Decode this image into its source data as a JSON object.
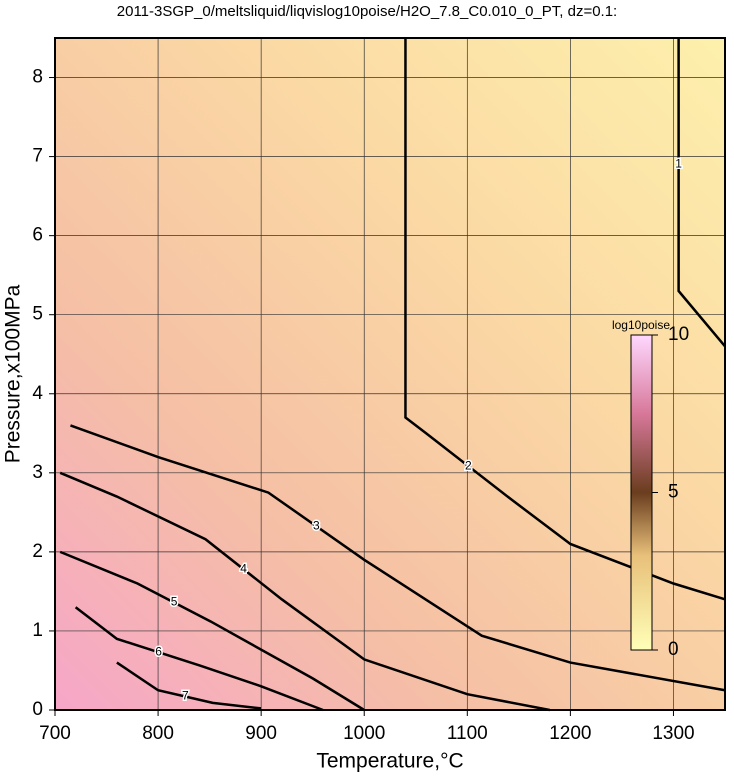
{
  "chart_data": {
    "type": "contour",
    "title": "2011-3SGP_0/meltsliquid/liqvislog10poise/H2O_7.8_C0.010_0_PT, dz=0.1:",
    "x_label": "Temperature,°C",
    "y_label": "Pressure,x100MPa",
    "xlim": [
      700,
      1350
    ],
    "ylim": [
      0,
      8.5
    ],
    "xticks": [
      700,
      800,
      900,
      1000,
      1100,
      1200,
      1300
    ],
    "yticks": [
      0,
      1,
      2,
      3,
      4,
      5,
      6,
      7,
      8
    ],
    "grid": true,
    "contours": [
      {
        "level": 1,
        "x": [
          1305,
          1305,
          1350
        ],
        "y": [
          8.5,
          5.3,
          4.6
        ]
      },
      {
        "level": 2,
        "x": [
          1040,
          1040,
          1060,
          1142,
          1200,
          1300,
          1350
        ],
        "y": [
          8.5,
          3.7,
          3.5,
          2.67,
          2.1,
          1.6,
          1.4
        ]
      },
      {
        "level": 3,
        "x": [
          715,
          800,
          907,
          1000,
          1114,
          1200,
          1350
        ],
        "y": [
          3.6,
          3.2,
          2.75,
          1.9,
          0.94,
          0.6,
          0.25
        ]
      },
      {
        "level": 4,
        "x": [
          705,
          760,
          846,
          920,
          1000,
          1100,
          1180
        ],
        "y": [
          3.0,
          2.7,
          2.16,
          1.4,
          0.64,
          0.2,
          0
        ]
      },
      {
        "level": 5,
        "x": [
          705,
          780,
          851,
          950,
          1000
        ],
        "y": [
          2.0,
          1.6,
          1.12,
          0.4,
          0
        ]
      },
      {
        "level": 6,
        "x": [
          720,
          760,
          841,
          900,
          960
        ],
        "y": [
          1.3,
          0.9,
          0.56,
          0.3,
          0
        ]
      },
      {
        "level": 7,
        "x": [
          760,
          800,
          853,
          900
        ],
        "y": [
          0.6,
          0.25,
          0.09,
          0.02
        ]
      }
    ],
    "colorbar": {
      "label": "log10poise",
      "lim": [
        0,
        10
      ],
      "ticks": [
        0,
        5,
        10
      ]
    }
  }
}
